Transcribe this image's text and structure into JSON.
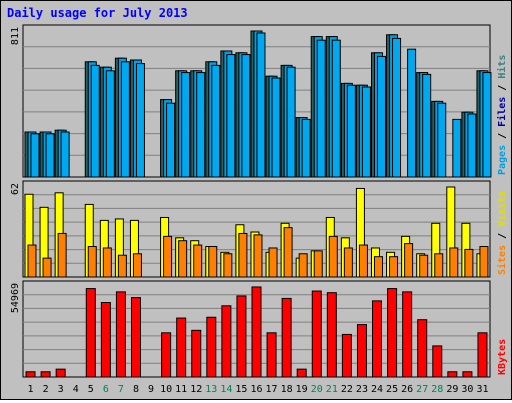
{
  "chart_data": {
    "type": "bar",
    "title": "Daily usage for July 2013",
    "categories": [
      "1",
      "2",
      "3",
      "4",
      "5",
      "6",
      "7",
      "8",
      "9",
      "10",
      "11",
      "12",
      "13",
      "14",
      "15",
      "16",
      "17",
      "18",
      "19",
      "20",
      "21",
      "22",
      "23",
      "24",
      "25",
      "26",
      "27",
      "28",
      "29",
      "30",
      "31"
    ],
    "weekend_days": [
      "6",
      "7",
      "13",
      "14",
      "20",
      "21",
      "27",
      "28"
    ],
    "grid": true,
    "legend": "right",
    "panels": [
      {
        "id": "top",
        "axis_label": "811",
        "ylim": [
          0,
          811
        ],
        "right_labels": [
          {
            "text": "Pages",
            "color": "#00a0e0"
          },
          {
            "text": " / ",
            "color": "#000000"
          },
          {
            "text": "Files",
            "color": "#0000a0"
          },
          {
            "text": " / ",
            "color": "#000000"
          },
          {
            "text": "Hits",
            "color": "#408080"
          }
        ],
        "series": [
          {
            "name": "Hits",
            "color": "#2a6060",
            "values": [
              250,
              250,
              260,
              0,
              640,
              610,
              660,
              650,
              0,
              430,
              590,
              590,
              640,
              700,
              690,
              811,
              560,
              620,
              330,
              780,
              780,
              520,
              510,
              690,
              790,
              0,
              580,
              420,
              0,
              360,
              590
            ]
          },
          {
            "name": "Files",
            "color": "#00a0e0",
            "values": [
              250,
              250,
              260,
              0,
              640,
              610,
              660,
              650,
              0,
              430,
              590,
              590,
              640,
              700,
              690,
              811,
              560,
              620,
              330,
              780,
              780,
              520,
              510,
              690,
              790,
              0,
              580,
              420,
              0,
              360,
              590
            ]
          },
          {
            "name": "Pages",
            "color": "#00a8f0",
            "values": [
              240,
              240,
              250,
              0,
              620,
              590,
              640,
              630,
              0,
              410,
              580,
              580,
              620,
              680,
              680,
              800,
              550,
              610,
              320,
              760,
              760,
              510,
              500,
              670,
              770,
              710,
              570,
              410,
              320,
              350,
              580
            ]
          }
        ]
      },
      {
        "id": "middle",
        "axis_label": "62",
        "ylim": [
          0,
          62
        ],
        "right_labels": [
          {
            "text": "Sites",
            "color": "#ff8000"
          },
          {
            "text": " / ",
            "color": "#000000"
          },
          {
            "text": "Visits",
            "color": "#e0e000"
          }
        ],
        "series": [
          {
            "name": "Visits",
            "color": "#ffff00",
            "values": [
              57,
              48,
              58,
              0,
              50,
              39,
              40,
              39,
              0,
              41,
              27,
              25,
              21,
              17,
              36,
              31,
              17,
              37,
              13,
              18,
              41,
              27,
              61,
              20,
              17,
              28,
              16,
              37,
              62,
              37,
              16
            ]
          },
          {
            "name": "Sites",
            "color": "#ff8000",
            "values": [
              22,
              13,
              30,
              0,
              21,
              20,
              15,
              16,
              0,
              28,
              25,
              22,
              21,
              16,
              30,
              29,
              20,
              34,
              16,
              18,
              28,
              20,
              22,
              14,
              14,
              23,
              15,
              16,
              20,
              19,
              21
            ]
          }
        ]
      },
      {
        "id": "bottom",
        "axis_label": "54969",
        "ylim": [
          0,
          54969
        ],
        "right_labels": [
          {
            "text": "KBytes",
            "color": "#ff0000"
          }
        ],
        "series": [
          {
            "name": "KBytes",
            "color": "#ff0000",
            "values": [
              3200,
              3200,
              4800,
              0,
              54000,
              45500,
              52000,
              48500,
              0,
              27000,
              36000,
              28500,
              36500,
              43500,
              49500,
              55000,
              27000,
              48000,
              4800,
              52500,
              51500,
              26000,
              32000,
              46500,
              54000,
              52000,
              35000,
              19000,
              3200,
              3200,
              27000
            ]
          }
        ]
      }
    ]
  },
  "colors": {
    "background": "#c0c0c0",
    "plot_area": "#c0c0c0",
    "gridline": "#808080",
    "title": "#0000ff",
    "weekday_label": "#000000",
    "weekend_label": "#00805c"
  }
}
